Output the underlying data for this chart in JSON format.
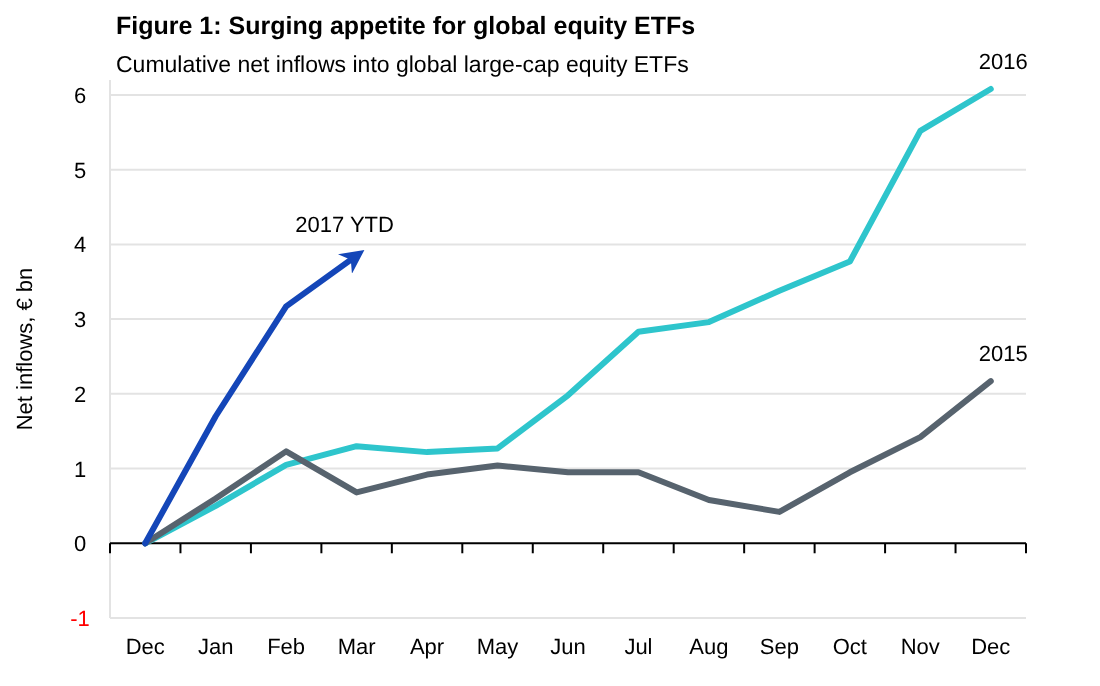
{
  "chart_data": {
    "type": "line",
    "title": "Figure 1: Surging appetite for global equity ETFs",
    "subtitle": "Cumulative net inflows into global large-cap equity ETFs",
    "ylabel": "Net inflows, € bn",
    "categories": [
      "Dec",
      "Jan",
      "Feb",
      "Mar",
      "Apr",
      "May",
      "Jun",
      "Jul",
      "Aug",
      "Sep",
      "Oct",
      "Nov",
      "Dec"
    ],
    "series": [
      {
        "name": "2016",
        "color": "#2ec5cc",
        "values": [
          0,
          0.5,
          1.05,
          1.3,
          1.22,
          1.27,
          1.98,
          2.83,
          2.96,
          3.38,
          3.77,
          5.52,
          6.08
        ]
      },
      {
        "name": "2015",
        "color": "#57636e",
        "values": [
          0,
          0.6,
          1.23,
          0.68,
          0.92,
          1.04,
          0.95,
          0.95,
          0.58,
          0.42,
          0.95,
          1.42,
          2.17
        ]
      },
      {
        "name": "2017 YTD",
        "color": "#1446b8",
        "values": [
          0,
          1.7,
          3.17,
          3.85,
          null,
          null,
          null,
          null,
          null,
          null,
          null,
          null,
          null
        ]
      }
    ],
    "ylim": [
      -1,
      6.2
    ],
    "yticks": [
      -1,
      0,
      1,
      2,
      3,
      4,
      5,
      6
    ],
    "grid": "y",
    "marker": "none",
    "line_style": "solid"
  }
}
